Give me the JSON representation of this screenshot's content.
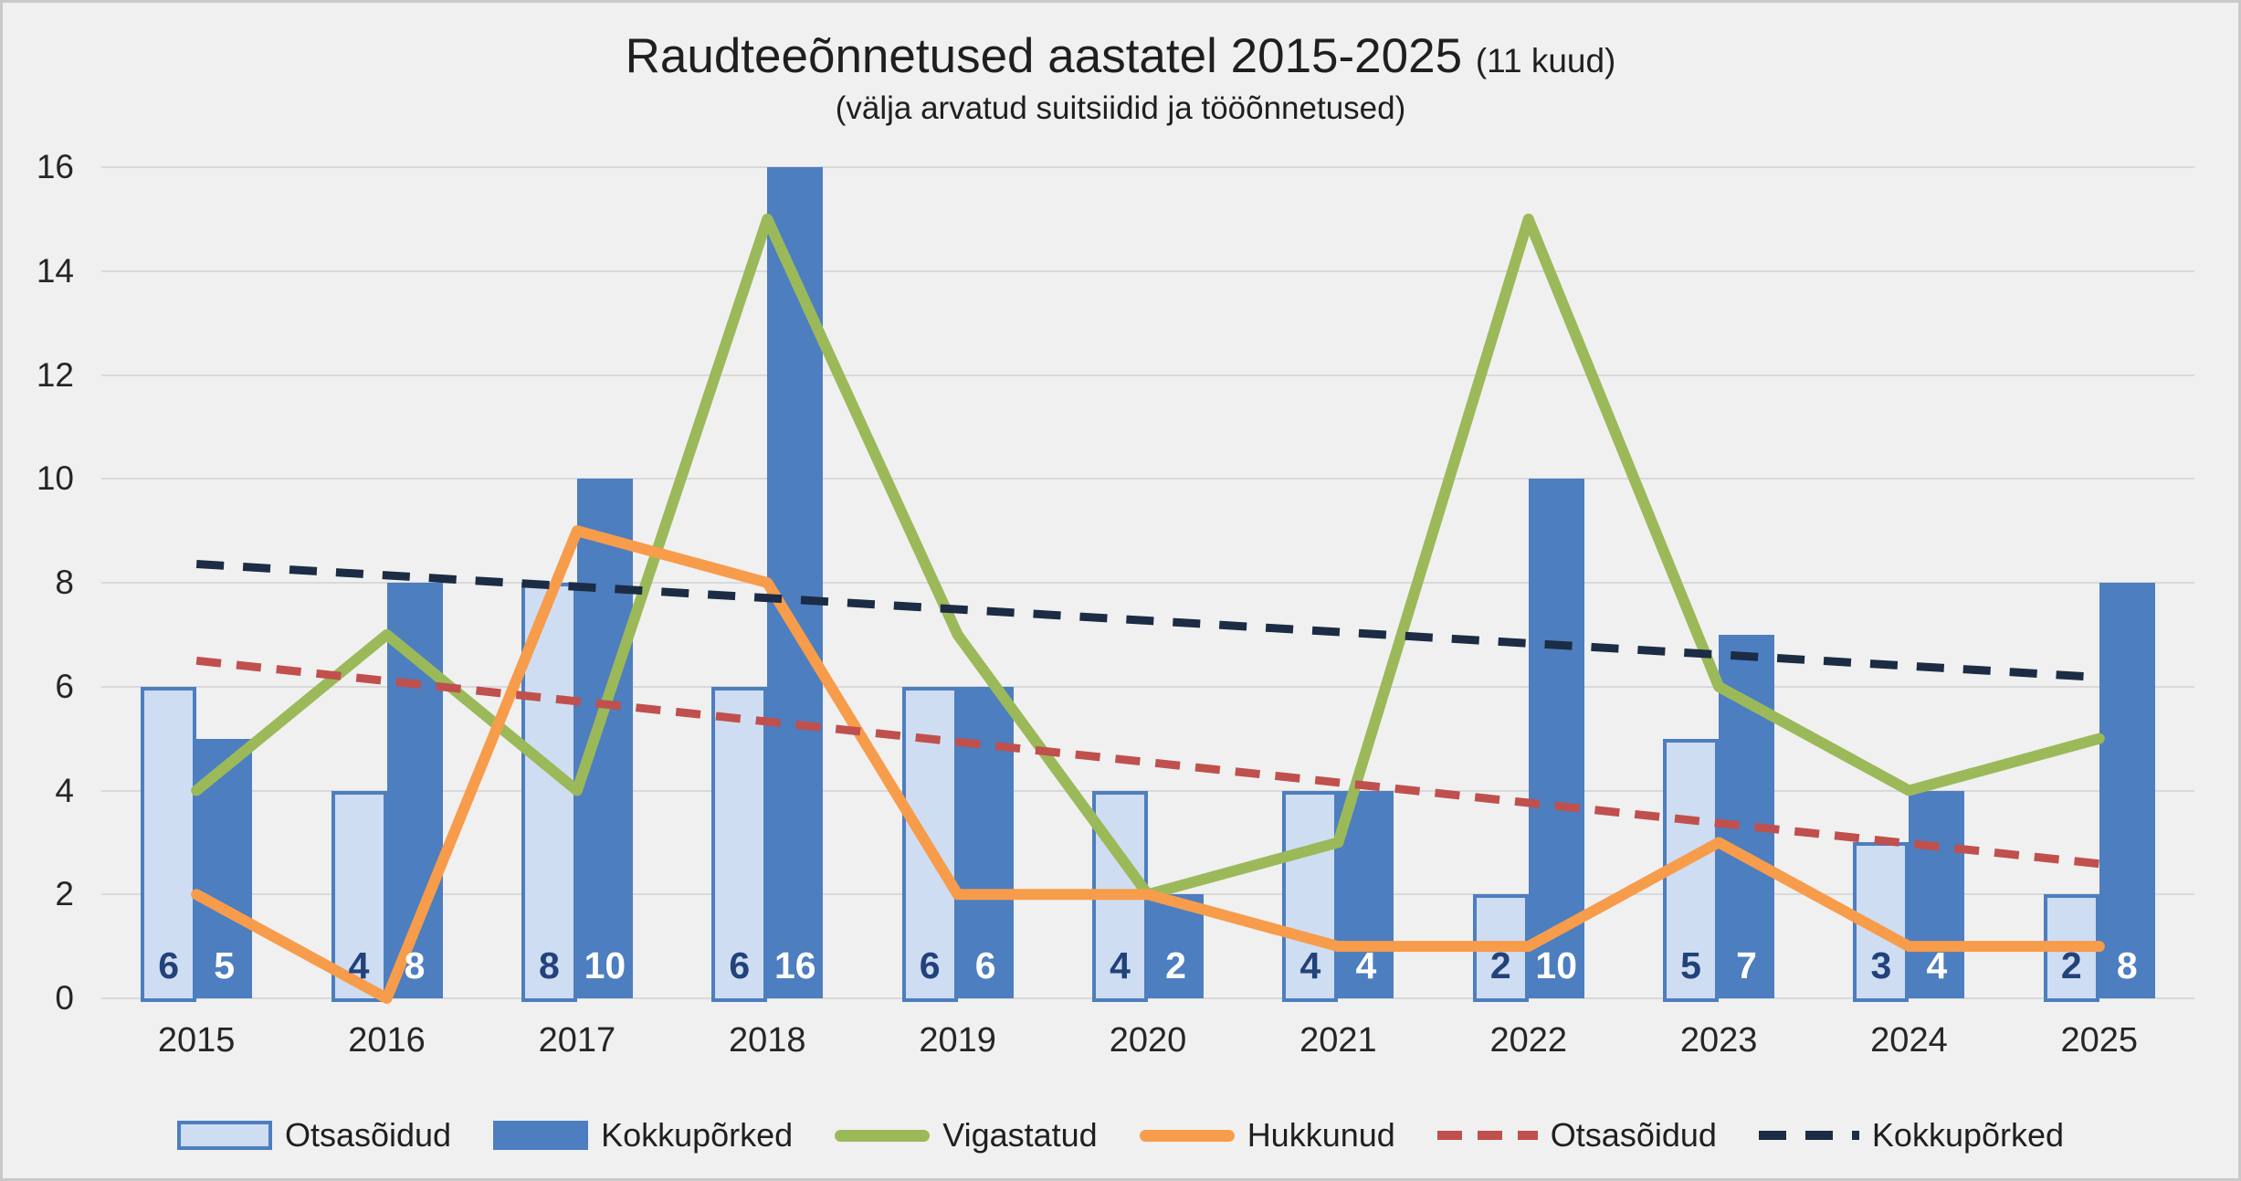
{
  "chart_data": {
    "type": "combo-bar-line",
    "title": "Raudteeõnnetused aastatel 2015-2025",
    "title_suffix": "(11 kuud)",
    "subtitle": "(välja arvatud suitsiidid ja tööõnnetused)",
    "categories": [
      "2015",
      "2016",
      "2017",
      "2018",
      "2019",
      "2020",
      "2021",
      "2022",
      "2023",
      "2024",
      "2025"
    ],
    "series": [
      {
        "key": "otsasoidud-bars",
        "name": "Otsasõidud",
        "type": "bar",
        "values": [
          6,
          4,
          8,
          6,
          6,
          4,
          4,
          2,
          5,
          3,
          2
        ],
        "fill": "#cfddf2",
        "border": "#4d7ebf",
        "label_color": "#22427b"
      },
      {
        "key": "kokkuporked-bars",
        "name": "Kokkupõrked",
        "type": "bar",
        "values": [
          5,
          8,
          10,
          16,
          6,
          2,
          4,
          10,
          7,
          4,
          8
        ],
        "fill": "#4d7ebf",
        "label_color": "#ffffff"
      },
      {
        "key": "vigastatud",
        "name": "Vigastatud",
        "type": "line",
        "values": [
          4,
          7,
          4,
          15,
          7,
          2,
          3,
          15,
          6,
          4,
          5
        ],
        "color": "#9bb959"
      },
      {
        "key": "hukkunud",
        "name": "Hukkunud",
        "type": "line",
        "values": [
          2,
          0,
          9,
          8,
          2,
          2,
          1,
          1,
          3,
          1,
          1
        ],
        "color": "#f79c4b"
      },
      {
        "key": "otsasoidud-trend",
        "name": "Otsasõidud",
        "type": "trend",
        "endpoints": [
          6.5,
          2.59
        ],
        "color": "#c0504d",
        "dash": [
          27,
          17
        ]
      },
      {
        "key": "kokkuporked-trend",
        "name": "Kokkupõrked",
        "type": "trend",
        "endpoints": [
          8.36,
          6.18
        ],
        "color": "#1b2c44",
        "dash": [
          30,
          21
        ]
      }
    ],
    "ylim": [
      0,
      16
    ],
    "ytick_step": 2,
    "grid": true,
    "legend_position": "bottom",
    "background_color": "#f0f0f0",
    "gridline_color": "#d9d9d9"
  }
}
